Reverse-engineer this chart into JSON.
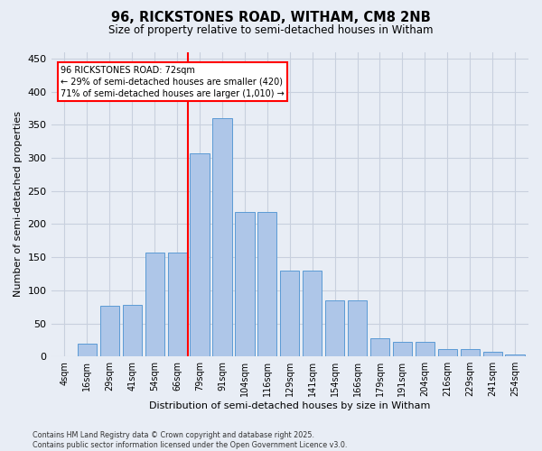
{
  "title": "96, RICKSTONES ROAD, WITHAM, CM8 2NB",
  "subtitle": "Size of property relative to semi-detached houses in Witham",
  "xlabel": "Distribution of semi-detached houses by size in Witham",
  "ylabel": "Number of semi-detached properties",
  "categories": [
    "4sqm",
    "16sqm",
    "29sqm",
    "41sqm",
    "54sqm",
    "66sqm",
    "79sqm",
    "91sqm",
    "104sqm",
    "116sqm",
    "129sqm",
    "141sqm",
    "154sqm",
    "166sqm",
    "179sqm",
    "191sqm",
    "204sqm",
    "216sqm",
    "229sqm",
    "241sqm",
    "254sqm"
  ],
  "bar_values": [
    0,
    20,
    77,
    78,
    157,
    157,
    307,
    360,
    218,
    218,
    130,
    130,
    85,
    85,
    27,
    22,
    22,
    11,
    11,
    7,
    3
  ],
  "bar_color": "#aec6e8",
  "bar_edge_color": "#5b9bd5",
  "annotation_line_color": "red",
  "annotation_text": "96 RICKSTONES ROAD: 72sqm\n← 29% of semi-detached houses are smaller (420)\n71% of semi-detached houses are larger (1,010) →",
  "ylim": [
    0,
    460
  ],
  "yticks": [
    0,
    50,
    100,
    150,
    200,
    250,
    300,
    350,
    400,
    450
  ],
  "grid_color": "#c8d0de",
  "background_color": "#e8edf5",
  "footnote": "Contains HM Land Registry data © Crown copyright and database right 2025.\nContains public sector information licensed under the Open Government Licence v3.0."
}
